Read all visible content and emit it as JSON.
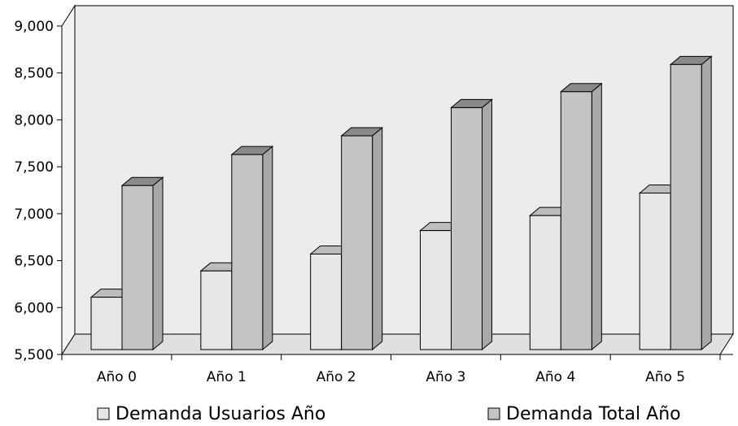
{
  "chart_data": {
    "type": "bar",
    "style": "3d-clustered-column",
    "categories": [
      "Año 0",
      "Año 1",
      "Año 2",
      "Año 3",
      "Año 4",
      "Año 5"
    ],
    "series": [
      {
        "name": "Demanda Usuarios Año",
        "values": [
          6110,
          6390,
          6570,
          6820,
          6980,
          7220
        ]
      },
      {
        "name": "Demanda Total Año",
        "values": [
          7300,
          7630,
          7830,
          8130,
          8300,
          8590
        ]
      }
    ],
    "yticks": [
      "5,500",
      "6,000",
      "6,500",
      "7,000",
      "7,500",
      "8,000",
      "8,500",
      "9,000"
    ],
    "ylim": [
      5500,
      9000
    ],
    "grid": false,
    "legend_position": "bottom",
    "colors": {
      "series1_front": "#e6e6e6",
      "series1_top": "#bdbdbd",
      "series1_side": "#cfcfcf",
      "series2_front": "#c4c4c4",
      "series2_top": "#8a8a8a",
      "series2_side": "#a8a8a8",
      "wall": "#ececec",
      "floor": "#e0e0e0"
    }
  }
}
